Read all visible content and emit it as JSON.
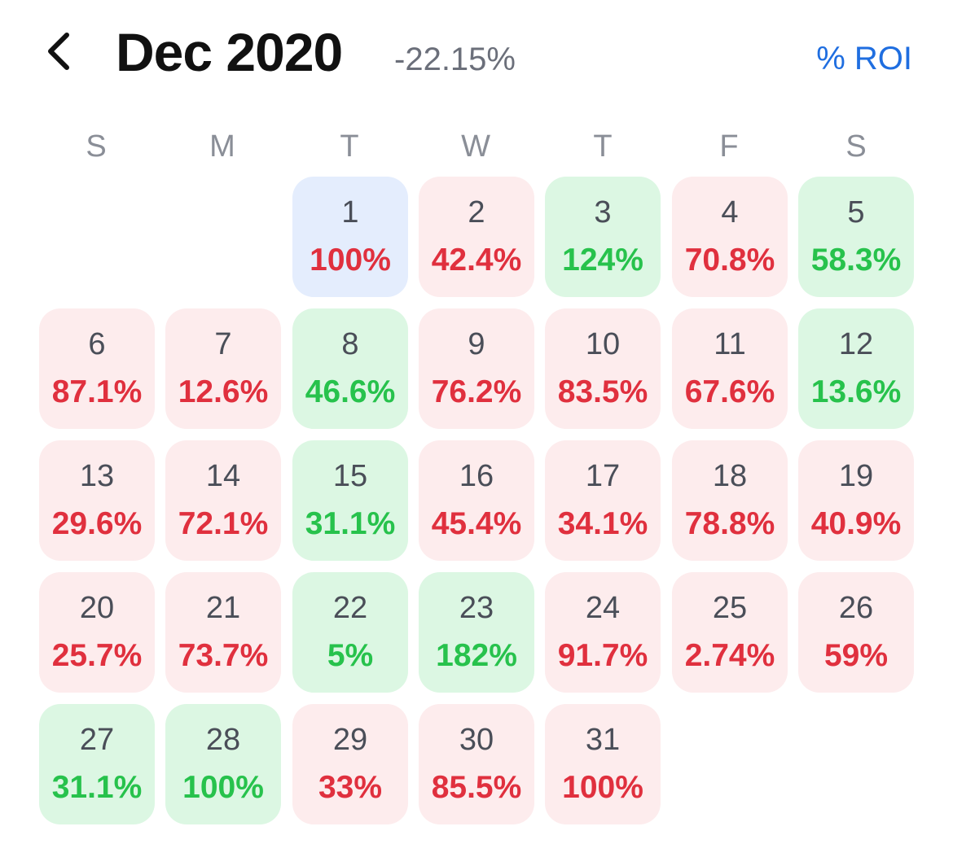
{
  "header": {
    "back_icon": "chevron-left-icon",
    "month_label": "Dec 2020",
    "month_roi": "-22.15%",
    "metric_toggle": "% ROI"
  },
  "colors": {
    "loss_bg": "#fdeced",
    "gain_bg": "#dcf7e3",
    "neutral_bg": "#e4edfd",
    "loss_text": "#e0303e",
    "gain_text": "#27c24c",
    "accent": "#1f6ee0"
  },
  "weekdays": [
    "S",
    "M",
    "T",
    "W",
    "T",
    "F",
    "S"
  ],
  "first_weekday_index": 2,
  "days": [
    {
      "day": "1",
      "roi": "100%",
      "status": "blue"
    },
    {
      "day": "2",
      "roi": "42.4%",
      "status": "red"
    },
    {
      "day": "3",
      "roi": "124%",
      "status": "green"
    },
    {
      "day": "4",
      "roi": "70.8%",
      "status": "red"
    },
    {
      "day": "5",
      "roi": "58.3%",
      "status": "green"
    },
    {
      "day": "6",
      "roi": "87.1%",
      "status": "red"
    },
    {
      "day": "7",
      "roi": "12.6%",
      "status": "red"
    },
    {
      "day": "8",
      "roi": "46.6%",
      "status": "green"
    },
    {
      "day": "9",
      "roi": "76.2%",
      "status": "red"
    },
    {
      "day": "10",
      "roi": "83.5%",
      "status": "red"
    },
    {
      "day": "11",
      "roi": "67.6%",
      "status": "red"
    },
    {
      "day": "12",
      "roi": "13.6%",
      "status": "green"
    },
    {
      "day": "13",
      "roi": "29.6%",
      "status": "red"
    },
    {
      "day": "14",
      "roi": "72.1%",
      "status": "red"
    },
    {
      "day": "15",
      "roi": "31.1%",
      "status": "green"
    },
    {
      "day": "16",
      "roi": "45.4%",
      "status": "red"
    },
    {
      "day": "17",
      "roi": "34.1%",
      "status": "red"
    },
    {
      "day": "18",
      "roi": "78.8%",
      "status": "red"
    },
    {
      "day": "19",
      "roi": "40.9%",
      "status": "red"
    },
    {
      "day": "20",
      "roi": "25.7%",
      "status": "red"
    },
    {
      "day": "21",
      "roi": "73.7%",
      "status": "red"
    },
    {
      "day": "22",
      "roi": "5%",
      "status": "green"
    },
    {
      "day": "23",
      "roi": "182%",
      "status": "green"
    },
    {
      "day": "24",
      "roi": "91.7%",
      "status": "red"
    },
    {
      "day": "25",
      "roi": "2.74%",
      "status": "red"
    },
    {
      "day": "26",
      "roi": "59%",
      "status": "red"
    },
    {
      "day": "27",
      "roi": "31.1%",
      "status": "green"
    },
    {
      "day": "28",
      "roi": "100%",
      "status": "green"
    },
    {
      "day": "29",
      "roi": "33%",
      "status": "red"
    },
    {
      "day": "30",
      "roi": "85.5%",
      "status": "red"
    },
    {
      "day": "31",
      "roi": "100%",
      "status": "red"
    }
  ]
}
